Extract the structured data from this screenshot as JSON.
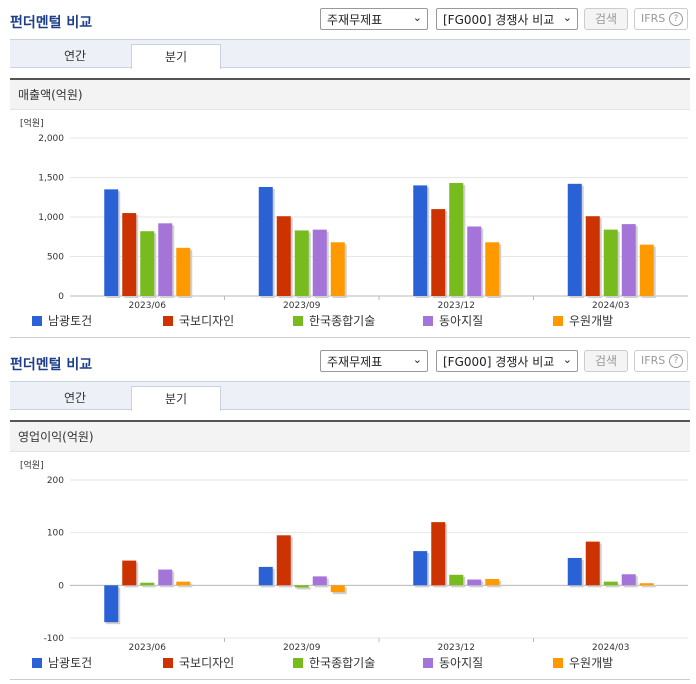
{
  "sections": [
    {
      "title": "펀더멘털 비교",
      "select1": "주재무제표",
      "select2": "[FG000] 경쟁사 비교",
      "search_label": "검색",
      "ifrs_label": "IFRS",
      "ifrs_q": "?",
      "tabs": [
        "연간",
        "분기"
      ],
      "active_tab": "분기",
      "chart_title": "매출액(억원)"
    },
    {
      "title": "펀더멘털 비교",
      "select1": "주재무제표",
      "select2": "[FG000] 경쟁사 비교",
      "search_label": "검색",
      "ifrs_label": "IFRS",
      "ifrs_q": "?",
      "tabs": [
        "연간",
        "분기"
      ],
      "active_tab": "분기",
      "chart_title": "영업이익(억원)"
    }
  ],
  "chart_data": [
    {
      "type": "bar",
      "title": "매출액(억원)",
      "unit_label": "[억원]",
      "categories": [
        "2023/06",
        "2023/09",
        "2023/12",
        "2024/03"
      ],
      "ylim": [
        0,
        2000
      ],
      "yticks": [
        "0",
        "500",
        "1,000",
        "1,500",
        "2,000"
      ],
      "ytick_values": [
        0,
        500,
        1000,
        1500,
        2000
      ],
      "grid": true,
      "series": [
        {
          "name": "남광토건",
          "color": "#2a62d6",
          "values": [
            1350,
            1380,
            1400,
            1420
          ]
        },
        {
          "name": "국보디자인",
          "color": "#cc3300",
          "values": [
            1050,
            1010,
            1100,
            1010
          ]
        },
        {
          "name": "한국종합기술",
          "color": "#77bb1f",
          "values": [
            820,
            830,
            1430,
            840
          ]
        },
        {
          "name": "동아지질",
          "color": "#a574d9",
          "values": [
            920,
            840,
            880,
            910
          ]
        },
        {
          "name": "우원개발",
          "color": "#ff9900",
          "values": [
            610,
            680,
            680,
            650
          ]
        }
      ]
    },
    {
      "type": "bar",
      "title": "영업이익(억원)",
      "unit_label": "[억원]",
      "categories": [
        "2023/06",
        "2023/09",
        "2023/12",
        "2024/03"
      ],
      "ylim": [
        -100,
        200
      ],
      "yticks": [
        "-100",
        "0",
        "100",
        "200"
      ],
      "ytick_values": [
        -100,
        0,
        100,
        200
      ],
      "grid": true,
      "series": [
        {
          "name": "남광토건",
          "color": "#2a62d6",
          "values": [
            -70,
            35,
            65,
            52
          ]
        },
        {
          "name": "국보디자인",
          "color": "#cc3300",
          "values": [
            47,
            95,
            120,
            83
          ]
        },
        {
          "name": "한국종합기술",
          "color": "#77bb1f",
          "values": [
            5,
            -4,
            20,
            7
          ]
        },
        {
          "name": "동아지질",
          "color": "#a574d9",
          "values": [
            30,
            17,
            11,
            21
          ]
        },
        {
          "name": "우원개발",
          "color": "#ff9900",
          "values": [
            7,
            -13,
            12,
            4
          ]
        }
      ]
    }
  ]
}
